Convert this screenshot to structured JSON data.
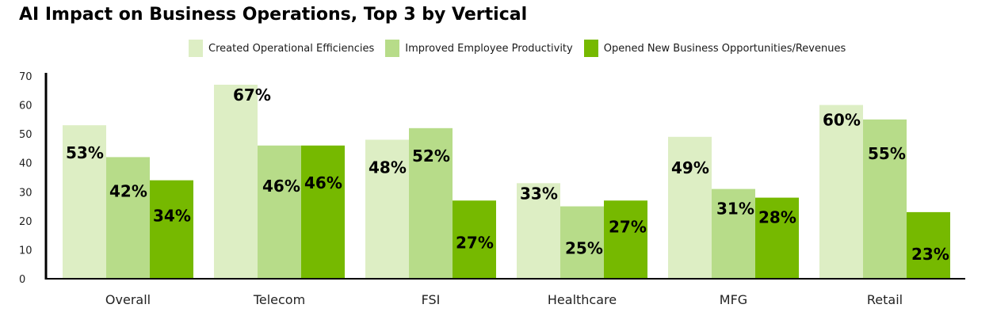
{
  "chart_data": {
    "type": "bar",
    "title": "AI Impact on Business Operations, Top 3 by Vertical",
    "categories": [
      "Overall",
      "Telecom",
      "FSI",
      "Healthcare",
      "MFG",
      "Retail"
    ],
    "ylim": [
      0,
      70
    ],
    "yticks": [
      "0",
      "10",
      "20",
      "30",
      "40",
      "50",
      "60",
      "70"
    ],
    "legend_position": "top",
    "grid": false,
    "series": [
      {
        "name": "Created Operational Efficiencies",
        "color": "#ddeec4",
        "values": [
          53,
          67,
          48,
          33,
          49,
          60
        ],
        "labels": [
          "53%",
          "67%",
          "48%",
          "33%",
          "49%",
          "60%"
        ]
      },
      {
        "name": "Improved Employee Productivity",
        "color": "#b7dc89",
        "values": [
          42,
          46,
          52,
          25,
          31,
          55
        ],
        "labels": [
          "42%",
          "46%",
          "52%",
          "25%",
          "31%",
          "55%"
        ]
      },
      {
        "name": "Opened New Business Opportunities/Revenues",
        "color": "#76b900",
        "values": [
          34,
          46,
          27,
          27,
          28,
          23
        ],
        "labels": [
          "34%",
          "46%",
          "27%",
          "27%",
          "28%",
          "23%"
        ]
      }
    ]
  }
}
